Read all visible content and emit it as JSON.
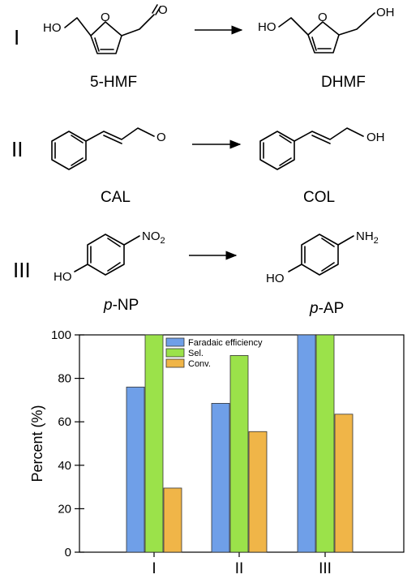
{
  "scheme": {
    "rows": [
      {
        "numeral": "I",
        "reactant": "5-HMF",
        "product": "DHMF"
      },
      {
        "numeral": "II",
        "reactant": "CAL",
        "product": "COL"
      },
      {
        "numeral": "III",
        "reactant_prefix": "p",
        "reactant_suffix": "-NP",
        "product_prefix": "p",
        "product_suffix": "-AP"
      }
    ],
    "atoms": {
      "HO": "HO",
      "OH": "OH",
      "O": "O",
      "NO": "NO",
      "NO_sub": "2",
      "NH": "NH",
      "NH_sub": "2"
    }
  },
  "chart_data": {
    "type": "bar",
    "categories": [
      "I",
      "II",
      "III"
    ],
    "series": [
      {
        "name": "Faradaic efficiency",
        "values": [
          76,
          68.5,
          100
        ],
        "color": "#6f9fe8"
      },
      {
        "name": "Sel.",
        "values": [
          100,
          90.5,
          100
        ],
        "color": "#9be24a"
      },
      {
        "name": "Conv.",
        "values": [
          29.5,
          55.5,
          63.5
        ],
        "color": "#f0b548"
      }
    ],
    "title": "",
    "xlabel": "",
    "ylabel": "Percent (%)",
    "ylim": [
      0,
      100
    ],
    "yticks": [
      0,
      20,
      40,
      60,
      80,
      100
    ],
    "grid": false,
    "legend": "top-center"
  }
}
